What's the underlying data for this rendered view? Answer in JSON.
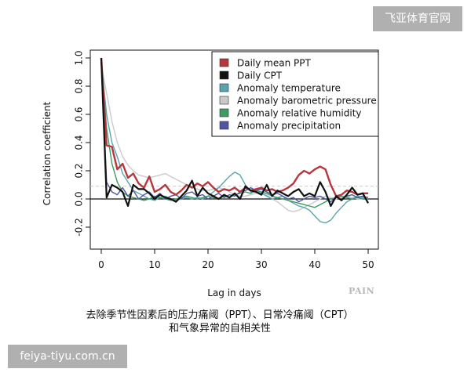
{
  "watermarks": {
    "top": "飞亚体育官网",
    "bottom": "feiya-tiyu.com.cn"
  },
  "journal_mark": "PAIN",
  "caption": {
    "line1": "去除季节性因素后的压力痛阈（PPT）、日常冷痛阈（CPT）",
    "line2": "和气象异常的自相关性"
  },
  "chart_data": {
    "type": "line",
    "title": "",
    "xlabel": "Lag in days",
    "ylabel": "Correlation coefficient",
    "xlim": [
      0,
      50
    ],
    "ylim": [
      -0.2,
      1.0
    ],
    "x_ticks": [
      0,
      10,
      20,
      30,
      40,
      50
    ],
    "y_ticks": [
      -0.2,
      0.0,
      0.2,
      0.4,
      0.6,
      0.8,
      1.0
    ],
    "y_tick_labels": [
      "-0.2",
      "0.0",
      "0.2",
      "0.4",
      "0.6",
      "0.8",
      "1.0"
    ],
    "hlines": [
      {
        "y": 0.0,
        "style": "solid"
      },
      {
        "y": 0.09,
        "style": "dashed"
      }
    ],
    "legend_position": "top-right",
    "grid": false,
    "series": [
      {
        "name": "Daily mean PPT",
        "color": "#b5383e",
        "width": 2.4,
        "x": [
          0,
          1,
          2,
          3,
          4,
          5,
          6,
          7,
          8,
          9,
          10,
          11,
          12,
          13,
          14,
          15,
          16,
          17,
          18,
          19,
          20,
          21,
          22,
          23,
          24,
          25,
          26,
          27,
          28,
          29,
          30,
          31,
          32,
          33,
          34,
          35,
          36,
          37,
          38,
          39,
          40,
          41,
          42,
          43,
          44,
          45,
          46,
          47,
          48,
          49,
          50
        ],
        "values": [
          1.0,
          0.38,
          0.37,
          0.21,
          0.25,
          0.15,
          0.18,
          0.11,
          0.08,
          0.16,
          0.05,
          0.07,
          0.1,
          0.05,
          0.03,
          0.06,
          0.1,
          0.08,
          0.11,
          0.09,
          0.12,
          0.08,
          0.05,
          0.07,
          0.06,
          0.08,
          0.05,
          0.08,
          0.06,
          0.07,
          0.08,
          0.06,
          0.07,
          0.05,
          0.06,
          0.08,
          0.11,
          0.17,
          0.2,
          0.18,
          0.21,
          0.23,
          0.21,
          0.1,
          0.02,
          0.03,
          0.06,
          0.05,
          0.03,
          0.04,
          0.04
        ]
      },
      {
        "name": "Daily CPT",
        "color": "#111111",
        "width": 2.2,
        "x": [
          0,
          1,
          2,
          3,
          4,
          5,
          6,
          7,
          8,
          9,
          10,
          11,
          12,
          13,
          14,
          15,
          16,
          17,
          18,
          19,
          20,
          21,
          22,
          23,
          24,
          25,
          26,
          27,
          28,
          29,
          30,
          31,
          32,
          33,
          34,
          35,
          36,
          37,
          38,
          39,
          40,
          41,
          42,
          43,
          44,
          45,
          46,
          47,
          48,
          49,
          50
        ],
        "values": [
          1.0,
          0.01,
          0.1,
          0.08,
          0.05,
          -0.05,
          0.1,
          0.07,
          0.07,
          0.04,
          0.0,
          0.03,
          0.01,
          0.0,
          -0.02,
          0.02,
          0.06,
          0.13,
          0.02,
          0.08,
          0.04,
          0.02,
          0.0,
          0.03,
          0.01,
          0.04,
          0.0,
          0.09,
          0.06,
          0.05,
          0.03,
          0.1,
          0.02,
          0.06,
          0.04,
          0.02,
          0.05,
          0.07,
          0.02,
          0.04,
          0.02,
          0.12,
          0.05,
          -0.05,
          0.02,
          -0.01,
          0.03,
          0.08,
          0.03,
          0.04,
          -0.03
        ]
      },
      {
        "name": "Anomaly temperature",
        "color": "#5aa3b0",
        "width": 1.4,
        "x": [
          0,
          1,
          2,
          3,
          4,
          5,
          6,
          7,
          8,
          9,
          10,
          11,
          12,
          13,
          14,
          15,
          16,
          17,
          18,
          19,
          20,
          21,
          22,
          23,
          24,
          25,
          26,
          27,
          28,
          29,
          30,
          31,
          32,
          33,
          34,
          35,
          36,
          37,
          38,
          39,
          40,
          41,
          42,
          43,
          44,
          45,
          46,
          47,
          48,
          49,
          50
        ],
        "values": [
          0.96,
          0.6,
          0.4,
          0.3,
          0.18,
          0.12,
          0.06,
          0.04,
          0.02,
          0.0,
          -0.01,
          0.01,
          0.02,
          0.0,
          -0.01,
          0.0,
          0.01,
          0.0,
          0.01,
          0.0,
          0.02,
          0.05,
          0.08,
          0.12,
          0.16,
          0.19,
          0.17,
          0.1,
          0.05,
          0.06,
          0.04,
          0.02,
          0.0,
          0.01,
          0.02,
          -0.01,
          -0.03,
          -0.05,
          -0.06,
          -0.08,
          -0.12,
          -0.16,
          -0.17,
          -0.15,
          -0.1,
          -0.06,
          -0.02,
          0.0,
          0.02,
          0.01,
          0.0
        ]
      },
      {
        "name": "Anomaly barometric pressure",
        "color": "#cacaca",
        "width": 1.4,
        "x": [
          0,
          1,
          2,
          3,
          4,
          5,
          6,
          7,
          8,
          9,
          10,
          11,
          12,
          13,
          14,
          15,
          16,
          17,
          18,
          19,
          20,
          21,
          22,
          23,
          24,
          25,
          26,
          27,
          28,
          29,
          30,
          31,
          32,
          33,
          34,
          35,
          36,
          37,
          38,
          39,
          40,
          41,
          42,
          43,
          44,
          45,
          46,
          47,
          48,
          49,
          50
        ],
        "values": [
          0.95,
          0.75,
          0.55,
          0.4,
          0.3,
          0.24,
          0.2,
          0.17,
          0.16,
          0.15,
          0.16,
          0.17,
          0.18,
          0.16,
          0.14,
          0.12,
          0.1,
          0.08,
          0.07,
          0.06,
          0.06,
          0.07,
          0.08,
          0.07,
          0.05,
          0.03,
          0.02,
          0.02,
          0.03,
          0.04,
          0.05,
          0.03,
          0.0,
          -0.02,
          -0.05,
          -0.08,
          -0.09,
          -0.08,
          -0.06,
          -0.04,
          -0.02,
          0.0,
          0.02,
          0.01,
          0.0,
          0.01,
          0.02,
          0.01,
          0.0,
          0.0,
          0.0
        ]
      },
      {
        "name": "Anomaly relative humidity",
        "color": "#3f9a63",
        "width": 1.4,
        "x": [
          0,
          1,
          2,
          3,
          4,
          5,
          6,
          7,
          8,
          9,
          10,
          11,
          12,
          13,
          14,
          15,
          16,
          17,
          18,
          19,
          20,
          21,
          22,
          23,
          24,
          25,
          26,
          27,
          28,
          29,
          30,
          31,
          32,
          33,
          34,
          35,
          36,
          37,
          38,
          39,
          40,
          41,
          42,
          43,
          44,
          45,
          46,
          47,
          48,
          49,
          50
        ],
        "values": [
          0.97,
          0.5,
          0.25,
          0.12,
          0.05,
          0.02,
          0.01,
          0.0,
          -0.01,
          0.0,
          0.02,
          0.01,
          0.0,
          -0.01,
          0.0,
          0.01,
          0.02,
          0.01,
          0.0,
          0.01,
          0.02,
          0.01,
          0.0,
          0.02,
          0.01,
          0.03,
          0.04,
          0.05,
          0.04,
          0.06,
          0.05,
          0.04,
          0.02,
          0.01,
          0.0,
          -0.01,
          -0.02,
          -0.03,
          -0.04,
          -0.05,
          -0.06,
          -0.04,
          -0.02,
          0.0,
          0.01,
          0.02,
          0.01,
          0.0,
          0.01,
          0.0,
          0.0
        ]
      },
      {
        "name": "Anomaly precipitation",
        "color": "#5156a3",
        "width": 1.4,
        "x": [
          0,
          1,
          2,
          3,
          4,
          5,
          6,
          7,
          8,
          9,
          10,
          11,
          12,
          13,
          14,
          15,
          16,
          17,
          18,
          19,
          20,
          21,
          22,
          23,
          24,
          25,
          26,
          27,
          28,
          29,
          30,
          31,
          32,
          33,
          34,
          35,
          36,
          37,
          38,
          39,
          40,
          41,
          42,
          43,
          44,
          45,
          46,
          47,
          48,
          49,
          50
        ],
        "values": [
          0.98,
          0.12,
          0.05,
          0.03,
          0.08,
          0.02,
          0.06,
          0.0,
          0.03,
          0.05,
          0.01,
          0.04,
          0.0,
          0.02,
          0.03,
          0.0,
          0.04,
          0.05,
          0.02,
          0.03,
          0.0,
          0.02,
          0.04,
          0.01,
          0.03,
          0.02,
          0.05,
          0.06,
          0.08,
          0.06,
          0.07,
          0.05,
          0.03,
          0.04,
          0.02,
          0.0,
          0.01,
          -0.02,
          0.0,
          0.02,
          0.01,
          0.02,
          0.0,
          -0.02,
          0.01,
          0.0,
          0.02,
          0.03,
          0.01,
          0.02,
          0.01
        ]
      }
    ]
  }
}
